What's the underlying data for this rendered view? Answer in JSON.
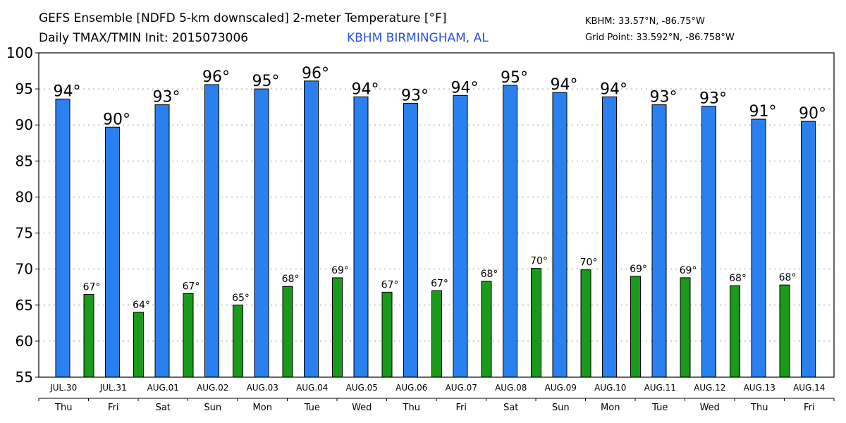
{
  "header": {
    "title_line1": "GEFS Ensemble [NDFD 5-km downscaled] 2-meter Temperature [°F]",
    "title_line2": "Daily TMAX/TMIN Init: 2015073006",
    "location": "KBHM BIRMINGHAM, AL",
    "station_coords": "KBHM: 33.57°N, -86.75°W",
    "grid_point": "Grid Point: 33.592°N, -86.758°W"
  },
  "chart_data": {
    "type": "bar",
    "title": "GEFS Ensemble [NDFD 5-km downscaled] 2-meter Temperature [°F]",
    "subtitle": "Daily TMAX/TMIN Init: 2015073006",
    "xlabel": "",
    "ylabel": "",
    "ylim": [
      55,
      100
    ],
    "yticks": [
      55,
      60,
      65,
      70,
      75,
      80,
      85,
      90,
      95,
      100
    ],
    "grid": "horizontal dotted",
    "categories": [
      "JUL.30",
      "JUL.31",
      "AUG.01",
      "AUG.02",
      "AUG.03",
      "AUG.04",
      "AUG.05",
      "AUG.06",
      "AUG.07",
      "AUG.08",
      "AUG.09",
      "AUG.10",
      "AUG.11",
      "AUG.12",
      "AUG.13",
      "AUG.14"
    ],
    "days": [
      "Thu",
      "Fri",
      "Sat",
      "Sun",
      "Mon",
      "Tue",
      "Wed",
      "Thu",
      "Fri",
      "Sat",
      "Sun",
      "Mon",
      "Tue",
      "Wed",
      "Thu",
      "Fri"
    ],
    "series": [
      {
        "color": "#2b80f0",
        "values": [
          93.6,
          89.7,
          92.8,
          95.6,
          95.0,
          96.1,
          93.9,
          93.0,
          94.1,
          95.5,
          94.5,
          93.9,
          92.8,
          92.6,
          90.8,
          90.5
        ],
        "labels": [
          "94°",
          "90°",
          "93°",
          "96°",
          "95°",
          "96°",
          "94°",
          "93°",
          "94°",
          "95°",
          "94°",
          "94°",
          "93°",
          "93°",
          "91°",
          "90°"
        ]
      },
      {
        "color": "#1a9a1a",
        "values": [
          66.5,
          64.0,
          66.6,
          65.0,
          67.6,
          68.8,
          66.8,
          67.0,
          68.3,
          70.1,
          69.9,
          69.0,
          68.8,
          67.7,
          67.8,
          null
        ],
        "labels": [
          "67°",
          "64°",
          "67°",
          "65°",
          "68°",
          "69°",
          "67°",
          "67°",
          "68°",
          "70°",
          "70°",
          "69°",
          "69°",
          "68°",
          "68°",
          ""
        ]
      }
    ]
  }
}
